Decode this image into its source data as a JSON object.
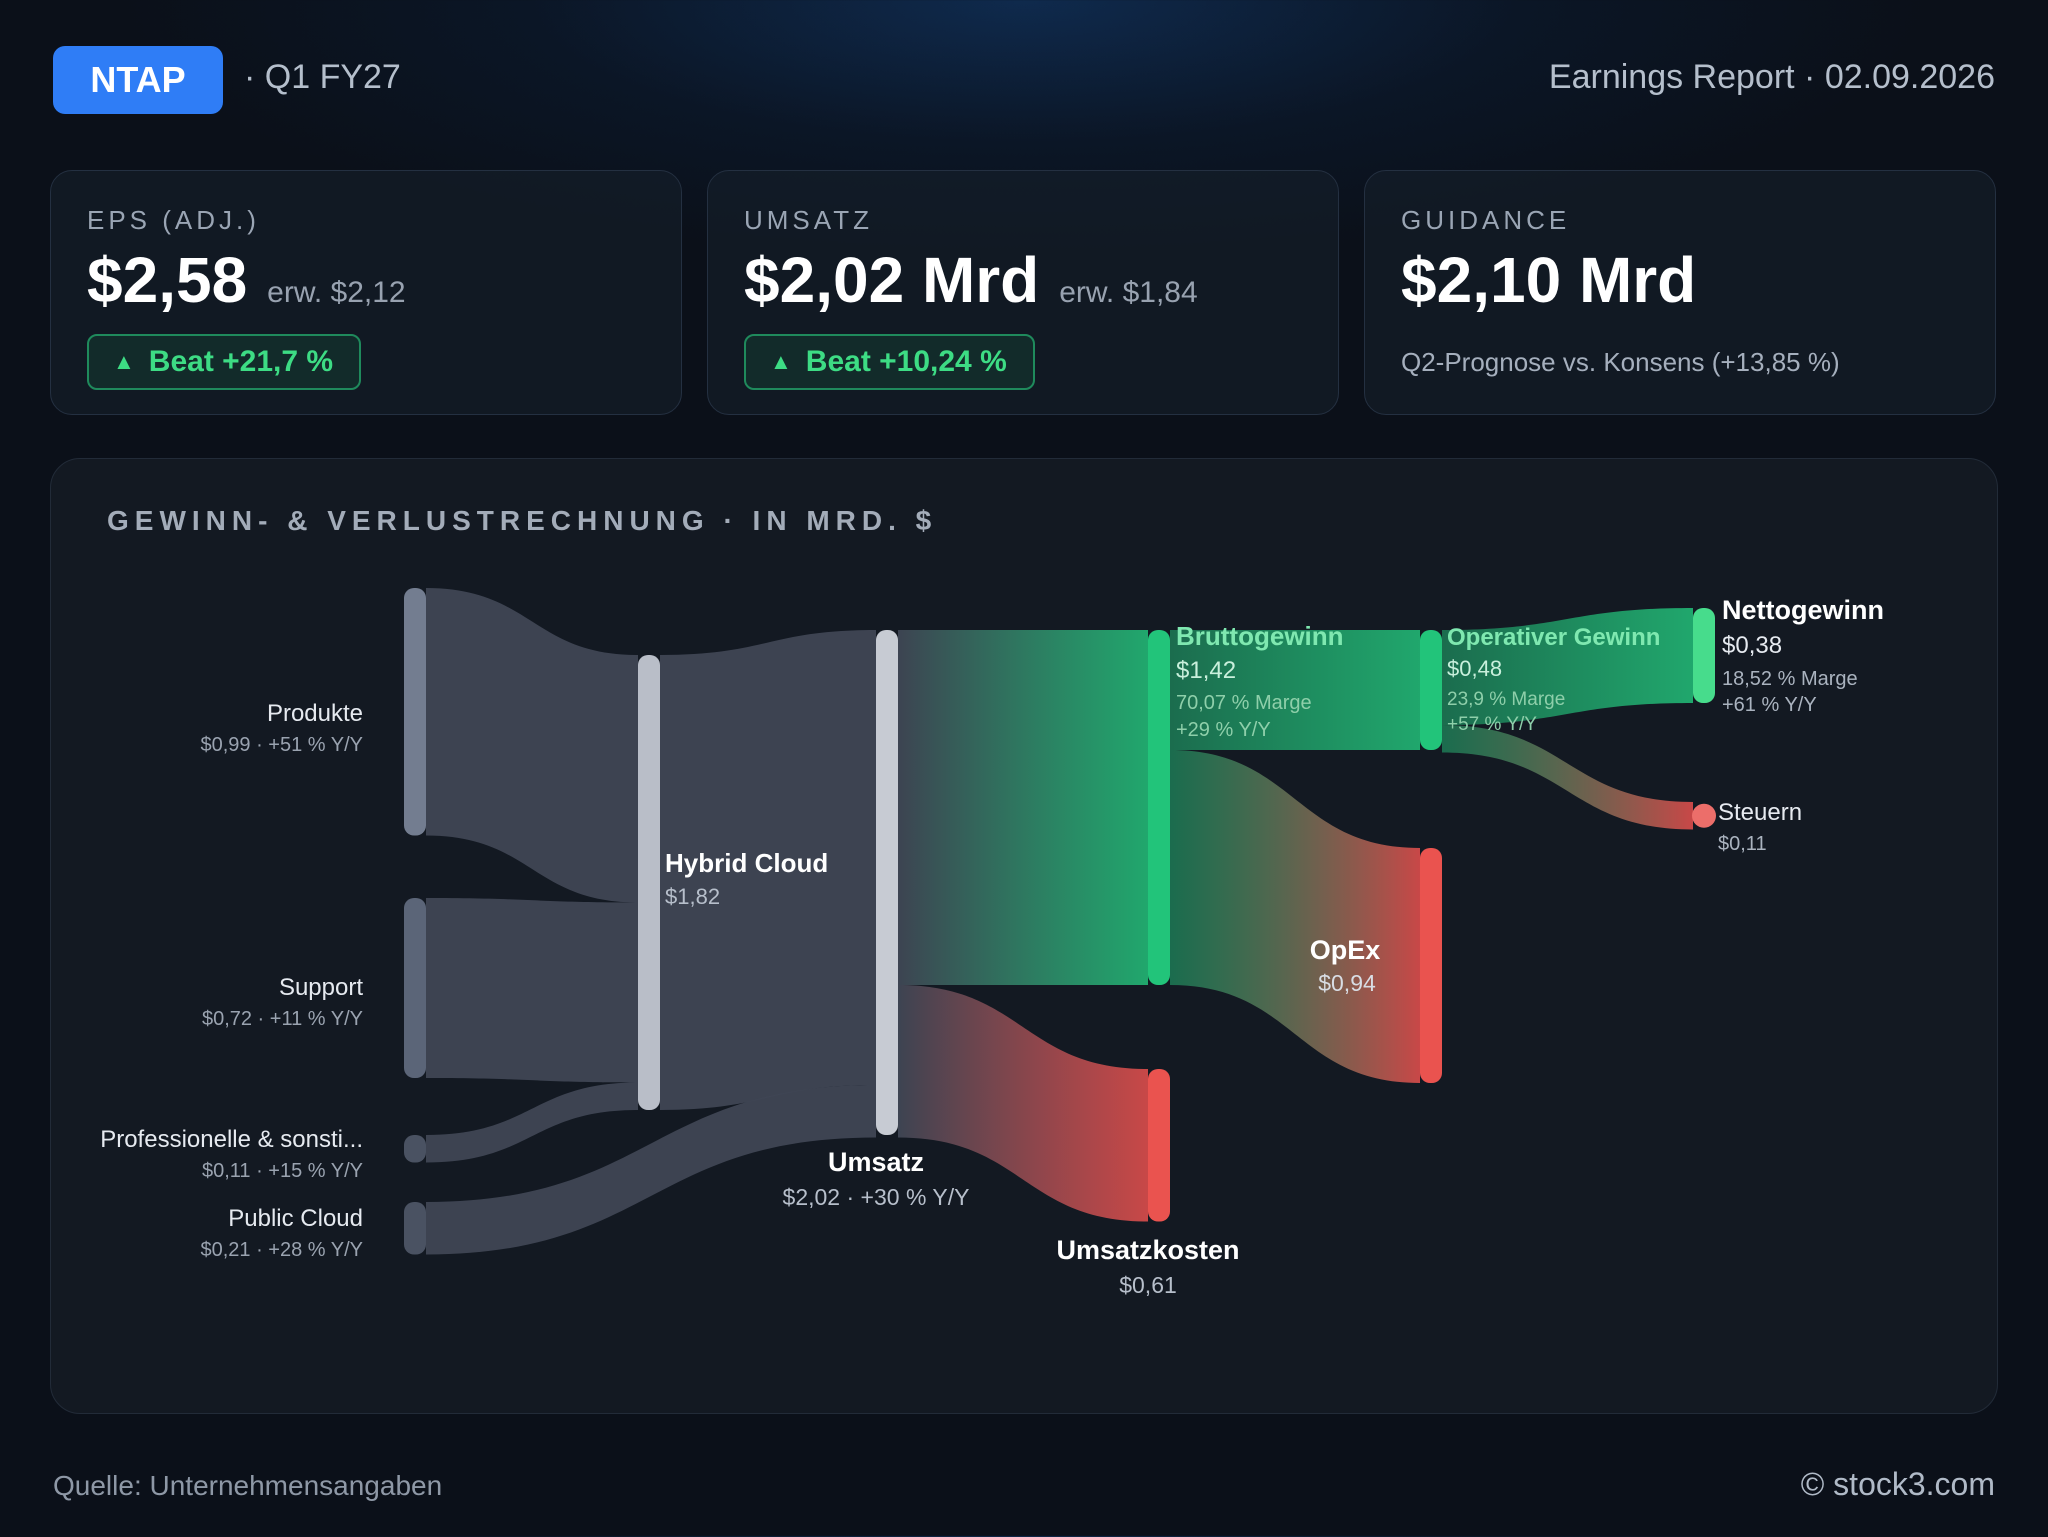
{
  "header": {
    "ticker": "NTAP",
    "quarter": "· Q1 FY27",
    "report": "Earnings Report · 02.09.2026"
  },
  "cards": {
    "eps": {
      "label": "EPS (ADJ.)",
      "value": "$2,58",
      "expected": "erw. $2,12",
      "beat": "Beat +21,7 %"
    },
    "revenue": {
      "label": "UMSATZ",
      "value": "$2,02 Mrd",
      "expected": "erw. $1,84",
      "beat": "Beat +10,24 %"
    },
    "guidance": {
      "label": "GUIDANCE",
      "value": "$2,10 Mrd",
      "note": "Q2-Prognose vs. Konsens (+13,85 %)"
    }
  },
  "panel": {
    "title": "GEWINN- & VERLUSTRECHNUNG · IN MRD. $"
  },
  "chart_data": {
    "type": "sankey",
    "title": "GEWINN- & VERLUSTRECHNUNG · IN MRD. $",
    "unit": "Mrd. $",
    "nodes": [
      {
        "id": "produkte",
        "name": "Produkte",
        "value": 0.99,
        "detail": "$0,99 · +51 % Y/Y"
      },
      {
        "id": "support",
        "name": "Support",
        "value": 0.72,
        "detail": "$0,72 · +11 % Y/Y"
      },
      {
        "id": "professional",
        "name": "Professionelle & sonsti...",
        "value": 0.11,
        "detail": "$0,11 · +15 % Y/Y"
      },
      {
        "id": "public_cloud",
        "name": "Public Cloud",
        "value": 0.21,
        "detail": "$0,21 · +28 % Y/Y"
      },
      {
        "id": "hybrid_cloud",
        "name": "Hybrid Cloud",
        "value": 1.82,
        "detail": "$1,82"
      },
      {
        "id": "umsatz",
        "name": "Umsatz",
        "value": 2.02,
        "detail": "$2,02 · +30 % Y/Y"
      },
      {
        "id": "brutto",
        "name": "Bruttogewinn",
        "value": 1.42,
        "detail": "$1,42",
        "margin": "70,07 % Marge",
        "yoy": "+29 % Y/Y"
      },
      {
        "id": "umsatzkosten",
        "name": "Umsatzkosten",
        "value": 0.61,
        "detail": "$0,61"
      },
      {
        "id": "op_gewinn",
        "name": "Operativer Gewinn",
        "value": 0.48,
        "detail": "$0,48",
        "margin": "23,9 % Marge",
        "yoy": "+57 % Y/Y"
      },
      {
        "id": "opex",
        "name": "OpEx",
        "value": 0.94,
        "detail": "$0,94"
      },
      {
        "id": "netto",
        "name": "Nettogewinn",
        "value": 0.38,
        "detail": "$0,38",
        "margin": "18,52 % Marge",
        "yoy": "+61 % Y/Y"
      },
      {
        "id": "steuern",
        "name": "Steuern",
        "value": 0.11,
        "detail": "$0,11"
      }
    ],
    "links": [
      {
        "source": "produkte",
        "target": "hybrid_cloud",
        "value": 0.99
      },
      {
        "source": "support",
        "target": "hybrid_cloud",
        "value": 0.72
      },
      {
        "source": "professional",
        "target": "hybrid_cloud",
        "value": 0.11
      },
      {
        "source": "hybrid_cloud",
        "target": "umsatz",
        "value": 1.82
      },
      {
        "source": "public_cloud",
        "target": "umsatz",
        "value": 0.21
      },
      {
        "source": "umsatz",
        "target": "brutto",
        "value": 1.42
      },
      {
        "source": "umsatz",
        "target": "umsatzkosten",
        "value": 0.61
      },
      {
        "source": "brutto",
        "target": "op_gewinn",
        "value": 0.48
      },
      {
        "source": "brutto",
        "target": "opex",
        "value": 0.94
      },
      {
        "source": "op_gewinn",
        "target": "netto",
        "value": 0.38
      },
      {
        "source": "op_gewinn",
        "target": "steuern",
        "value": 0.11
      }
    ],
    "colors": {
      "neutral": "#3f4654",
      "profit": "#23c07a",
      "cost": "#e8504e"
    }
  },
  "footer": {
    "source": "Quelle: Unternehmensangaben",
    "copyright": "© stock3.com"
  }
}
